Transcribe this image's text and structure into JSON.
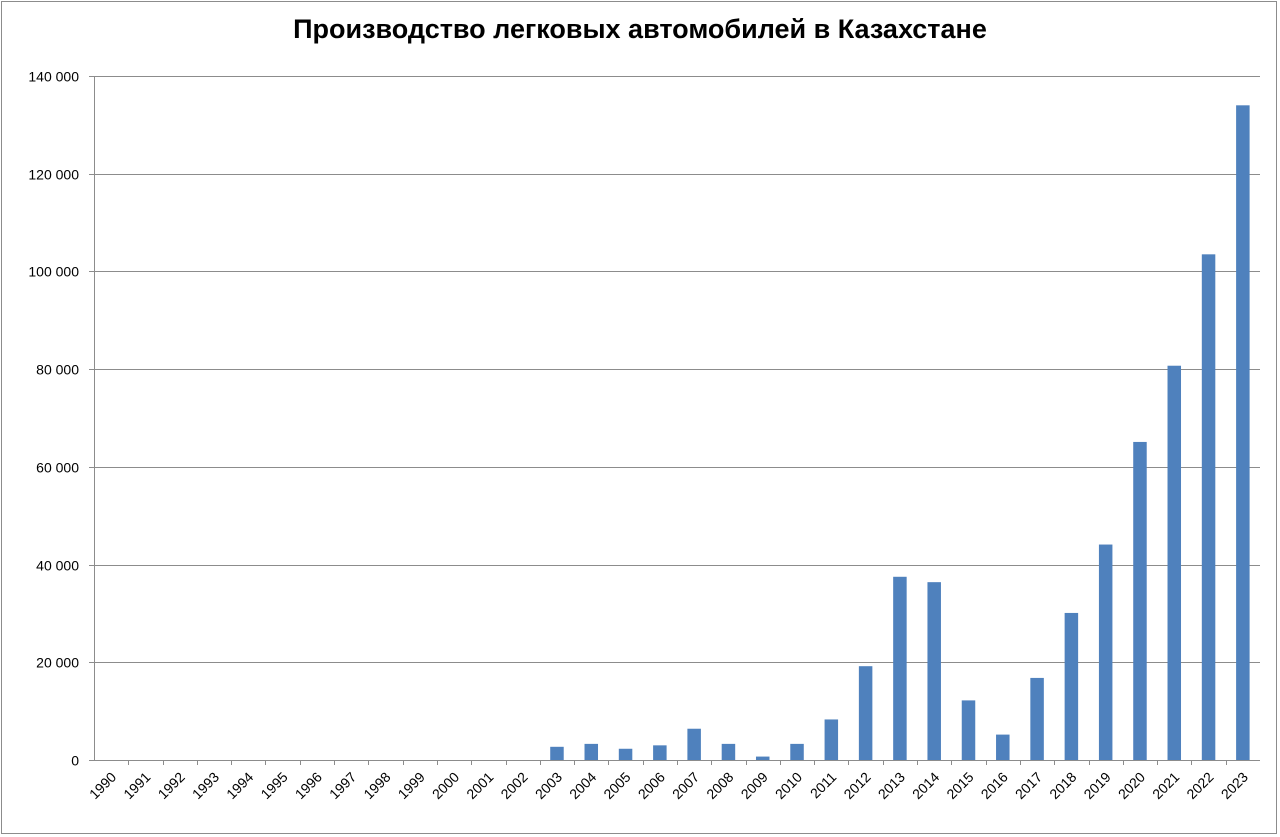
{
  "chart_data": {
    "type": "bar",
    "title": "Производство легковых автомобилей в Казахстане",
    "xlabel": "",
    "ylabel": "",
    "ylim": [
      0,
      140000
    ],
    "yticks": [
      0,
      20000,
      40000,
      60000,
      80000,
      100000,
      120000,
      140000
    ],
    "ytick_labels": [
      "0",
      "20 000",
      "40 000",
      "60 000",
      "80 000",
      "100 000",
      "120 000",
      "140 000"
    ],
    "grid": true,
    "legend": "none",
    "bar_color": "#4f81bd",
    "categories": [
      "1990",
      "1991",
      "1992",
      "1993",
      "1994",
      "1995",
      "1996",
      "1997",
      "1998",
      "1999",
      "2000",
      "2001",
      "2002",
      "2003",
      "2004",
      "2005",
      "2006",
      "2007",
      "2008",
      "2009",
      "2010",
      "2011",
      "2012",
      "2013",
      "2014",
      "2015",
      "2016",
      "2017",
      "2018",
      "2019",
      "2020",
      "2021",
      "2022",
      "2023"
    ],
    "values": [
      0,
      0,
      0,
      0,
      0,
      0,
      0,
      0,
      0,
      0,
      0,
      0,
      0,
      2700,
      3300,
      2300,
      3000,
      6400,
      3300,
      700,
      3300,
      8300,
      19200,
      37500,
      36400,
      12200,
      5200,
      16800,
      30100,
      44100,
      65100,
      80700,
      103500,
      134000
    ]
  }
}
